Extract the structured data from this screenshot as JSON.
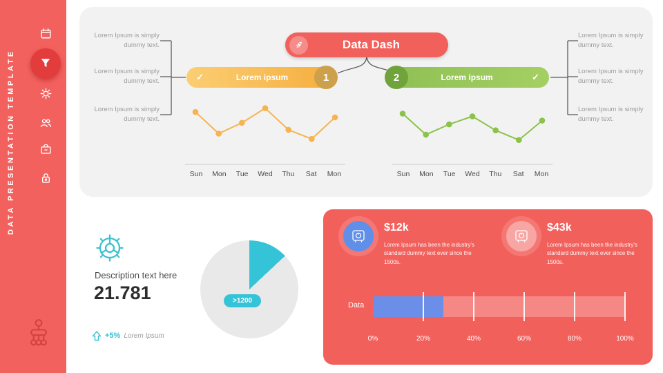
{
  "colors": {
    "coral": "#f2605c",
    "orange": "#f6b350",
    "green": "#8bc34a",
    "teal": "#35c4d7",
    "blue": "#6b8ee8",
    "panel_gray": "#f2f2f2"
  },
  "sidebar": {
    "vertical_title": "DATA PRESENTATION TEMPLATE",
    "icons": [
      "calendar-icon",
      "funnel-icon",
      "gear-icon",
      "people-icon",
      "cashbox-icon",
      "lock-icon",
      "orgchart-icon"
    ]
  },
  "glyphs": {
    "check": "✓"
  },
  "dashboard": {
    "title": "Data Dash",
    "steps": [
      {
        "number": "1",
        "label": "Lorem ipsum"
      },
      {
        "number": "2",
        "label": "Lorem ipsum"
      }
    ],
    "left_notes": [
      "Lorem Ipsum is simply dummy text.",
      "Lorem Ipsum is simply dummy text.",
      "Lorem Ipsum is simply dummy text."
    ],
    "right_notes": [
      "Lorem Ipsum is simply dummy text.",
      "Lorem Ipsum is simply dummy text.",
      "Lorem Ipsum is simply dummy text."
    ]
  },
  "summary": {
    "description": "Description text here",
    "value": "21.781",
    "delta": "+5%",
    "delta_label": "Lorem Ipsum"
  },
  "stats_panel": {
    "stats": [
      {
        "value": "$12k",
        "text": "Lorem Ipsum has been the industry's standard dummy text ever since the 1500s."
      },
      {
        "value": "$43k",
        "text": "Lorem Ipsum has been the industry's standard dummy text ever since the 1500s."
      }
    ]
  },
  "chart_data": [
    {
      "type": "line",
      "name": "step1-line",
      "categories": [
        "Sun",
        "Mon",
        "Tue",
        "Wed",
        "Thu",
        "Sat",
        "Mon"
      ],
      "values": [
        78,
        38,
        58,
        85,
        45,
        28,
        68
      ],
      "ylim": [
        0,
        100
      ],
      "color": "#f6b350",
      "grid": false,
      "legend": false
    },
    {
      "type": "line",
      "name": "step2-line",
      "categories": [
        "Sun",
        "Mon",
        "Tue",
        "Wed",
        "Thu",
        "Sat",
        "Mon"
      ],
      "values": [
        75,
        36,
        55,
        70,
        44,
        26,
        62
      ],
      "ylim": [
        0,
        100
      ],
      "color": "#8bc34a",
      "grid": false,
      "legend": false
    },
    {
      "type": "pie",
      "name": "summary-pie",
      "values": [
        13,
        87
      ],
      "colors": [
        "#35c4d7",
        "#e9e9e9"
      ],
      "badge": ">1200"
    },
    {
      "type": "bar",
      "name": "data-bar",
      "orientation": "horizontal",
      "categories": [
        "Data"
      ],
      "values": [
        28
      ],
      "xlim": [
        0,
        100
      ],
      "tick_labels": [
        "0%",
        "20%",
        "40%",
        "60%",
        "80%",
        "100%"
      ],
      "color": "#6b8ee8"
    }
  ]
}
